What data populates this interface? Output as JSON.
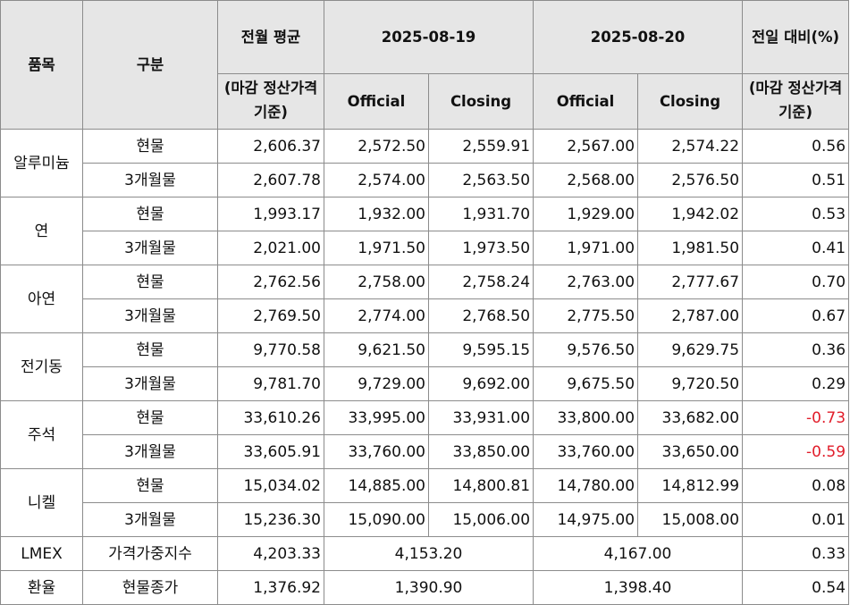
{
  "header": {
    "item": "품목",
    "category": "구분",
    "avg_title": "전월 평균",
    "avg_note": "(마감 정산가격 기준)",
    "date1": "2025-08-19",
    "date2": "2025-08-20",
    "change_title": "전일 대비(%)",
    "change_note": "(마감 정산가격 기준)",
    "official": "Official",
    "closing": "Closing"
  },
  "groups": [
    {
      "name": "알루미늄",
      "rows": [
        {
          "cat": "현물",
          "avg": "2,606.37",
          "d1_official": "2,572.50",
          "d1_closing": "2,559.91",
          "d2_official": "2,567.00",
          "d2_closing": "2,574.22",
          "change": "0.56"
        },
        {
          "cat": "3개월물",
          "avg": "2,607.78",
          "d1_official": "2,574.00",
          "d1_closing": "2,563.50",
          "d2_official": "2,568.00",
          "d2_closing": "2,576.50",
          "change": "0.51"
        }
      ]
    },
    {
      "name": "연",
      "rows": [
        {
          "cat": "현물",
          "avg": "1,993.17",
          "d1_official": "1,932.00",
          "d1_closing": "1,931.70",
          "d2_official": "1,929.00",
          "d2_closing": "1,942.02",
          "change": "0.53"
        },
        {
          "cat": "3개월물",
          "avg": "2,021.00",
          "d1_official": "1,971.50",
          "d1_closing": "1,973.50",
          "d2_official": "1,971.00",
          "d2_closing": "1,981.50",
          "change": "0.41"
        }
      ]
    },
    {
      "name": "아연",
      "rows": [
        {
          "cat": "현물",
          "avg": "2,762.56",
          "d1_official": "2,758.00",
          "d1_closing": "2,758.24",
          "d2_official": "2,763.00",
          "d2_closing": "2,777.67",
          "change": "0.70"
        },
        {
          "cat": "3개월물",
          "avg": "2,769.50",
          "d1_official": "2,774.00",
          "d1_closing": "2,768.50",
          "d2_official": "2,775.50",
          "d2_closing": "2,787.00",
          "change": "0.67"
        }
      ]
    },
    {
      "name": "전기동",
      "rows": [
        {
          "cat": "현물",
          "avg": "9,770.58",
          "d1_official": "9,621.50",
          "d1_closing": "9,595.15",
          "d2_official": "9,576.50",
          "d2_closing": "9,629.75",
          "change": "0.36"
        },
        {
          "cat": "3개월물",
          "avg": "9,781.70",
          "d1_official": "9,729.00",
          "d1_closing": "9,692.00",
          "d2_official": "9,675.50",
          "d2_closing": "9,720.50",
          "change": "0.29"
        }
      ]
    },
    {
      "name": "주석",
      "rows": [
        {
          "cat": "현물",
          "avg": "33,610.26",
          "d1_official": "33,995.00",
          "d1_closing": "33,931.00",
          "d2_official": "33,800.00",
          "d2_closing": "33,682.00",
          "change": "-0.73"
        },
        {
          "cat": "3개월물",
          "avg": "33,605.91",
          "d1_official": "33,760.00",
          "d1_closing": "33,850.00",
          "d2_official": "33,760.00",
          "d2_closing": "33,650.00",
          "change": "-0.59"
        }
      ]
    },
    {
      "name": "니켈",
      "rows": [
        {
          "cat": "현물",
          "avg": "15,034.02",
          "d1_official": "14,885.00",
          "d1_closing": "14,800.81",
          "d2_official": "14,780.00",
          "d2_closing": "14,812.99",
          "change": "0.08"
        },
        {
          "cat": "3개월물",
          "avg": "15,236.30",
          "d1_official": "15,090.00",
          "d1_closing": "15,006.00",
          "d2_official": "14,975.00",
          "d2_closing": "15,008.00",
          "change": "0.01"
        }
      ]
    }
  ],
  "singles": [
    {
      "name": "LMEX",
      "cat": "가격가중지수",
      "avg": "4,203.33",
      "d1": "4,153.20",
      "d2": "4,167.00",
      "change": "0.33"
    },
    {
      "name": "환율",
      "cat": "현물종가",
      "avg": "1,376.92",
      "d1": "1,390.90",
      "d2": "1,398.40",
      "change": "0.54"
    }
  ],
  "colors": {
    "header_bg": "#e6e6e6",
    "border": "#8c8c8c",
    "negative": "#e11d2a"
  }
}
